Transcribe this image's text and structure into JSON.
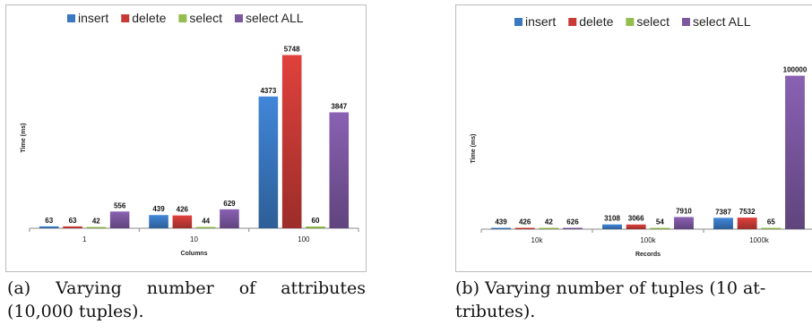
{
  "legend_colors": {
    "insert": "#3a78c2",
    "delete": "#c83a36",
    "select": "#94bd4e",
    "select ALL": "#7b57a0"
  },
  "chart_data": [
    {
      "type": "bar",
      "categories": [
        "1",
        "10",
        "100"
      ],
      "series": [
        {
          "name": "insert",
          "values": [
            63,
            439,
            4373
          ]
        },
        {
          "name": "delete",
          "values": [
            63,
            426,
            5748
          ]
        },
        {
          "name": "select",
          "values": [
            42,
            44,
            60
          ]
        },
        {
          "name": "select ALL",
          "values": [
            556,
            629,
            3847
          ]
        }
      ],
      "value_labels": [
        [
          "63",
          "439",
          "4373"
        ],
        [
          "63",
          "426",
          "5748"
        ],
        [
          "42",
          "44",
          "60"
        ],
        [
          "556",
          "629",
          "3847"
        ]
      ],
      "xlabel": "Columns",
      "ylabel": "Time (ms)",
      "ylim": [
        0,
        6000
      ],
      "legend_position": "top",
      "grid": false
    },
    {
      "type": "bar",
      "categories": [
        "10k",
        "100k",
        "1000k"
      ],
      "series": [
        {
          "name": "insert",
          "values": [
            439,
            3108,
            7387
          ]
        },
        {
          "name": "delete",
          "values": [
            426,
            3066,
            7532
          ]
        },
        {
          "name": "select",
          "values": [
            42,
            54,
            65
          ]
        },
        {
          "name": "select ALL",
          "values": [
            626,
            7910,
            100000
          ]
        }
      ],
      "value_labels": [
        [
          "439",
          "3108",
          "7387"
        ],
        [
          "426",
          "3066",
          "7532"
        ],
        [
          "42",
          "54",
          "65"
        ],
        [
          "626",
          "7910",
          "100000"
        ]
      ],
      "xlabel": "Records",
      "ylabel": "Time (ms)",
      "ylim": [
        0,
        105000
      ],
      "legend_position": "top",
      "grid": false
    }
  ],
  "captions": {
    "a_line1": "(a) Varying number of attributes",
    "a_line2": "(10,000 tuples).",
    "b_line1": "(b) Varying number of tuples (10 at-",
    "b_line2": "tributes)."
  }
}
